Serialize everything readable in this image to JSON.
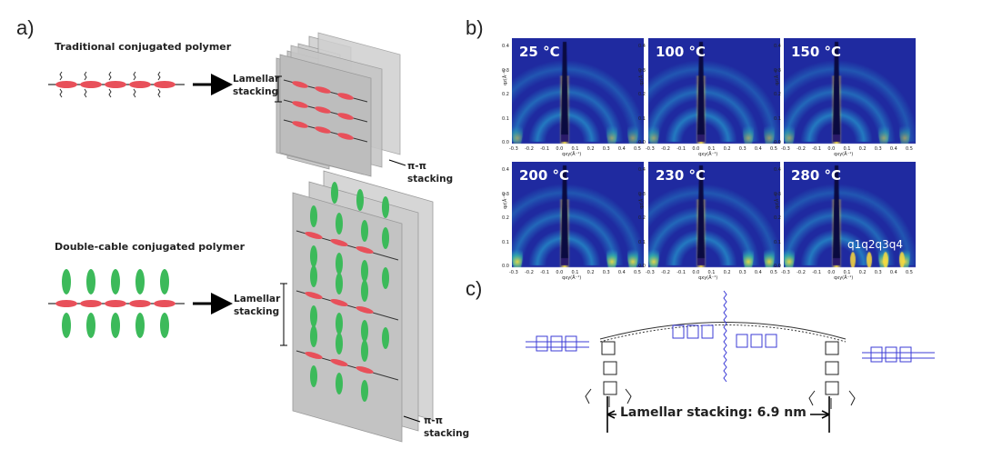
{
  "panel_a": {
    "label": "a)",
    "top_title": "Traditional conjugated polymer",
    "top_lamellar": "Lamellar\nstacking",
    "top_pipi": "π-π\nstacking",
    "bottom_title": "Double-cable conjugated polymer",
    "bottom_lamellar": "Lamellar\nstacking",
    "bottom_pipi": "π-π\nstacking"
  },
  "panel_b": {
    "label": "b)",
    "panels": [
      {
        "temp": "25 °C"
      },
      {
        "temp": "100 °C"
      },
      {
        "temp": "150 °C"
      },
      {
        "temp": "200 °C"
      },
      {
        "temp": "230 °C"
      },
      {
        "temp": "280 °C",
        "peaks": "q1q2q3q4"
      }
    ],
    "ylabel": "qz(Å⁻¹)",
    "xlabel": "qxy(Å⁻¹)",
    "yticks": [
      "0.0",
      "0.1",
      "0.2",
      "0.3",
      "0.4"
    ],
    "xticks": [
      "-0.3",
      "-0.2",
      "-0.1",
      "0.0",
      "0.1",
      "0.2",
      "0.3",
      "0.4",
      "0.5"
    ]
  },
  "panel_c": {
    "label": "c)",
    "dimension": "Lamellar stacking: 6.9 nm"
  },
  "colors": {
    "sheet": "#c8c8c8",
    "backbone_red": "#e8505a",
    "pendant_green": "#3cba5a",
    "giwaxs_bg": "#1f2aa0",
    "molecule_blue": "#3b3bd6"
  }
}
